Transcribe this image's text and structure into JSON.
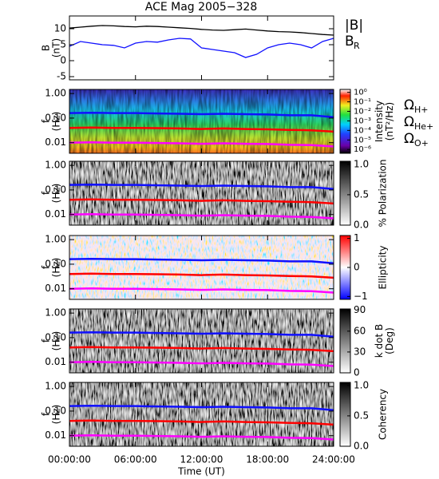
{
  "chart_data": [
    {
      "type": "line",
      "title": "ACE Mag 2005−328",
      "ylabel": [
        "B",
        "(nT)"
      ],
      "x": [
        0,
        1,
        2,
        3,
        4,
        5,
        6,
        7,
        8,
        9,
        10,
        11,
        12,
        13,
        14,
        15,
        16,
        17,
        18,
        19,
        20,
        21,
        22,
        23,
        24
      ],
      "xlim": [
        0,
        24
      ],
      "ylim": [
        -6,
        14
      ],
      "yticks": [
        -5,
        0,
        5,
        10
      ],
      "series": [
        {
          "name": "|B|",
          "color": "#000000",
          "values": [
            10.2,
            10.5,
            10.8,
            11,
            10.9,
            10.7,
            10.6,
            10.8,
            10.7,
            10.5,
            10.3,
            10.1,
            9.8,
            9.6,
            9.5,
            9.7,
            9.9,
            9.6,
            9.3,
            9.1,
            9.0,
            8.8,
            8.5,
            8.2,
            8.0
          ]
        },
        {
          "name": "B",
          "subscript": "R",
          "color": "#1010ff",
          "values": [
            4.5,
            6,
            5.5,
            5,
            4.8,
            4,
            5.5,
            6,
            5.8,
            6.5,
            7,
            6.8,
            4,
            3.5,
            3,
            2.5,
            1,
            2,
            4,
            5,
            5.5,
            5,
            4,
            6,
            7
          ]
        }
      ]
    },
    {
      "type": "spectrogram",
      "colormap": "rainbow",
      "ylabel": [
        "f",
        "(Hz)"
      ],
      "log_y": true,
      "x": [
        0,
        2,
        4,
        6,
        8,
        10,
        12,
        14,
        16,
        18,
        20,
        22,
        24
      ],
      "xlim": [
        0,
        24
      ],
      "ylim": [
        0.0037,
        1.47
      ],
      "yticks": [
        {
          "value": 1,
          "label": "1.00"
        },
        {
          "value": 0.1,
          "label": "0.10"
        },
        {
          "value": 0.01,
          "label": "0.01"
        }
      ],
      "colorbar": {
        "label": [
          "Intensity",
          "(nT²/Hz)"
        ],
        "log": true,
        "lim": [
          4e-07,
          2
        ],
        "ticks": [
          {
            "value": 1,
            "label": "10⁰"
          },
          {
            "value": 0.1,
            "label": "10⁻¹"
          },
          {
            "value": 0.01,
            "label": "10⁻²"
          },
          {
            "value": 0.001,
            "label": "10⁻³"
          },
          {
            "value": 0.0001,
            "label": "10⁻⁴"
          },
          {
            "value": 1e-05,
            "label": "10⁻⁵"
          },
          {
            "value": 1e-06,
            "label": "10⁻⁶"
          }
        ]
      },
      "series": [
        {
          "name": "Ω",
          "subscript": "H+",
          "color": "#1010ff",
          "values": [
            0.16,
            0.165,
            0.16,
            0.16,
            0.155,
            0.15,
            0.145,
            0.15,
            0.145,
            0.14,
            0.13,
            0.13,
            0.11
          ]
        },
        {
          "name": "Ω",
          "subscript": "He+",
          "color": "#ff0000",
          "values": [
            0.04,
            0.041,
            0.04,
            0.04,
            0.039,
            0.038,
            0.036,
            0.038,
            0.036,
            0.035,
            0.033,
            0.032,
            0.028
          ]
        },
        {
          "name": "Ω",
          "subscript": "O+",
          "color": "#ff00ff",
          "values": [
            0.01,
            0.0103,
            0.01,
            0.01,
            0.0097,
            0.0094,
            0.009,
            0.0094,
            0.009,
            0.0088,
            0.0082,
            0.008,
            0.007
          ]
        }
      ]
    },
    {
      "type": "spectrogram",
      "colormap": "gray",
      "ylabel": [
        "f",
        "(Hz)"
      ],
      "log_y": true,
      "x": [
        0,
        2,
        4,
        6,
        8,
        10,
        12,
        14,
        16,
        18,
        20,
        22,
        24
      ],
      "xlim": [
        0,
        24
      ],
      "ylim": [
        0.0037,
        1.47
      ],
      "yticks": [
        {
          "value": 1,
          "label": "1.00"
        },
        {
          "value": 0.1,
          "label": "0.10"
        },
        {
          "value": 0.01,
          "label": "0.01"
        }
      ],
      "colorbar": {
        "label": [
          "% Polarization"
        ],
        "lim": [
          0,
          1.05
        ],
        "ticks": [
          {
            "value": 1,
            "label": "1.0"
          },
          {
            "value": 0.5,
            "label": "0.5"
          },
          {
            "value": 0,
            "label": "0.0"
          }
        ]
      },
      "series": [
        {
          "color": "#1010ff",
          "values": [
            0.16,
            0.165,
            0.16,
            0.16,
            0.155,
            0.15,
            0.145,
            0.15,
            0.145,
            0.14,
            0.13,
            0.13,
            0.11
          ]
        },
        {
          "color": "#ff0000",
          "values": [
            0.04,
            0.041,
            0.04,
            0.04,
            0.039,
            0.038,
            0.036,
            0.038,
            0.036,
            0.035,
            0.033,
            0.032,
            0.028
          ]
        },
        {
          "color": "#ff00ff",
          "values": [
            0.01,
            0.0103,
            0.01,
            0.01,
            0.0097,
            0.0094,
            0.009,
            0.0094,
            0.009,
            0.0088,
            0.0082,
            0.008,
            0.007
          ]
        }
      ]
    },
    {
      "type": "spectrogram",
      "colormap": "red-blue",
      "ylabel": [
        "f",
        "(Hz)"
      ],
      "log_y": true,
      "x": [
        0,
        2,
        4,
        6,
        8,
        10,
        12,
        14,
        16,
        18,
        20,
        22,
        24
      ],
      "xlim": [
        0,
        24
      ],
      "ylim": [
        0.0037,
        1.47
      ],
      "yticks": [
        {
          "value": 1,
          "label": "1.00"
        },
        {
          "value": 0.1,
          "label": "0.10"
        },
        {
          "value": 0.01,
          "label": "0.01"
        }
      ],
      "colorbar": {
        "label": [
          "Ellipticity"
        ],
        "lim": [
          -1.1,
          1.1
        ],
        "ticks": [
          1,
          0,
          {
            "value": -1,
            "label": "−1"
          }
        ]
      },
      "series": [
        {
          "color": "#1010ff",
          "values": [
            0.16,
            0.165,
            0.16,
            0.16,
            0.155,
            0.15,
            0.145,
            0.15,
            0.145,
            0.14,
            0.13,
            0.13,
            0.11
          ]
        },
        {
          "color": "#ff0000",
          "values": [
            0.04,
            0.041,
            0.04,
            0.04,
            0.039,
            0.038,
            0.036,
            0.038,
            0.036,
            0.035,
            0.033,
            0.032,
            0.028
          ]
        },
        {
          "color": "#ff00ff",
          "values": [
            0.01,
            0.0103,
            0.01,
            0.01,
            0.0097,
            0.0094,
            0.009,
            0.0094,
            0.009,
            0.0088,
            0.0082,
            0.008,
            0.007
          ]
        }
      ]
    },
    {
      "type": "spectrogram",
      "colormap": "gray",
      "ylabel": [
        "f",
        "(Hz)"
      ],
      "log_y": true,
      "x": [
        0,
        2,
        4,
        6,
        8,
        10,
        12,
        14,
        16,
        18,
        20,
        22,
        24
      ],
      "xlim": [
        0,
        24
      ],
      "ylim": [
        0.0037,
        1.47
      ],
      "yticks": [
        {
          "value": 1,
          "label": "1.00"
        },
        {
          "value": 0.1,
          "label": "0.10"
        },
        {
          "value": 0.01,
          "label": "0.01"
        }
      ],
      "colorbar": {
        "label": [
          "k dot B",
          "(Deg)"
        ],
        "lim": [
          0,
          92
        ],
        "ticks": [
          90,
          60,
          30,
          0
        ]
      },
      "series": [
        {
          "color": "#1010ff",
          "values": [
            0.16,
            0.165,
            0.16,
            0.16,
            0.155,
            0.15,
            0.145,
            0.15,
            0.145,
            0.14,
            0.13,
            0.13,
            0.11
          ]
        },
        {
          "color": "#ff0000",
          "values": [
            0.04,
            0.041,
            0.04,
            0.04,
            0.039,
            0.038,
            0.036,
            0.038,
            0.036,
            0.035,
            0.033,
            0.032,
            0.028
          ]
        },
        {
          "color": "#ff00ff",
          "values": [
            0.01,
            0.0103,
            0.01,
            0.01,
            0.0097,
            0.0094,
            0.009,
            0.0094,
            0.009,
            0.0088,
            0.0082,
            0.008,
            0.007
          ]
        }
      ]
    },
    {
      "type": "spectrogram",
      "colormap": "gray",
      "ylabel": [
        "f",
        "(Hz)"
      ],
      "log_y": true,
      "x": [
        0,
        2,
        4,
        6,
        8,
        10,
        12,
        14,
        16,
        18,
        20,
        22,
        24
      ],
      "xlim": [
        0,
        24
      ],
      "ylim": [
        0.0037,
        1.47
      ],
      "yticks": [
        {
          "value": 1,
          "label": "1.00"
        },
        {
          "value": 0.1,
          "label": "0.10"
        },
        {
          "value": 0.01,
          "label": "0.01"
        }
      ],
      "xlabel": "Time (UT)",
      "xticks": [
        {
          "value": 0,
          "label": "00:00:00"
        },
        {
          "value": 6,
          "label": "06:00:00"
        },
        {
          "value": 12,
          "label": "12:00:00"
        },
        {
          "value": 18,
          "label": "18:00:00"
        },
        {
          "value": 24,
          "label": "24:00:00"
        }
      ],
      "colorbar": {
        "label": [
          "Coherency"
        ],
        "lim": [
          0,
          1.05
        ],
        "ticks": [
          {
            "value": 1,
            "label": "1.0"
          },
          {
            "value": 0.5,
            "label": "0.5"
          },
          {
            "value": 0,
            "label": "0.0"
          }
        ]
      },
      "series": [
        {
          "color": "#1010ff",
          "values": [
            0.16,
            0.165,
            0.16,
            0.16,
            0.155,
            0.15,
            0.145,
            0.15,
            0.145,
            0.14,
            0.13,
            0.13,
            0.11
          ]
        },
        {
          "color": "#ff0000",
          "values": [
            0.04,
            0.041,
            0.04,
            0.04,
            0.039,
            0.038,
            0.036,
            0.038,
            0.036,
            0.035,
            0.033,
            0.032,
            0.028
          ]
        },
        {
          "color": "#ff00ff",
          "values": [
            0.01,
            0.0103,
            0.01,
            0.01,
            0.0097,
            0.0094,
            0.009,
            0.0094,
            0.009,
            0.0088,
            0.0082,
            0.008,
            0.007
          ]
        }
      ]
    }
  ]
}
